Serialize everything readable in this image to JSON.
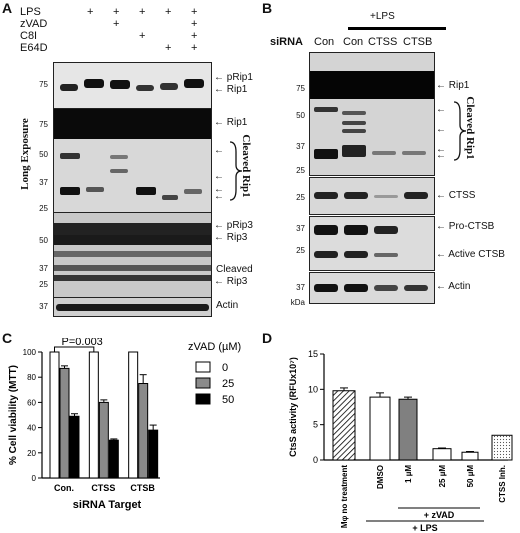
{
  "panelA": {
    "letter": "A",
    "treatments": [
      "LPS",
      "zVAD",
      "C8I",
      "E64D"
    ],
    "plus": "+",
    "signs": [
      [
        "",
        "+",
        "+",
        "+",
        "+",
        "+"
      ],
      [
        "",
        "",
        "+",
        "",
        "",
        "+"
      ],
      [
        "",
        "",
        "",
        "+",
        "",
        "+"
      ],
      [
        "",
        "",
        "",
        "",
        "+",
        "+"
      ]
    ],
    "long_exposure": "Long Exposure",
    "mw1": [
      "75"
    ],
    "mw2": [
      "75",
      "50",
      "37",
      "25"
    ],
    "mw3": [
      "50",
      "37",
      "25"
    ],
    "mw4": [
      "37"
    ],
    "labels": {
      "pRip1": "pRip1",
      "Rip1": "Rip1",
      "Rip1b": "Rip1",
      "cleaved_rip1": "Cleaved Rip1",
      "pRip3": "pRip3",
      "Rip3": "Rip3",
      "cleaved": "Cleaved",
      "Rip3b": "Rip3",
      "actin": "Actin"
    }
  },
  "panelB": {
    "letter": "B",
    "plus_lps": "+LPS",
    "sirna": "siRNA",
    "lanes": [
      "Con",
      "Con",
      "CTSS",
      "CTSB"
    ],
    "mw1": [
      "75",
      "50",
      "37",
      "25"
    ],
    "mw2": [
      "25"
    ],
    "mw3": [
      "37",
      "25"
    ],
    "mw4": [
      "37"
    ],
    "kda": "kDa",
    "labels": {
      "rip1": "Rip1",
      "cleaved_rip1": "Cleaved Rip1",
      "ctss": "CTSS",
      "pro_ctsb": "Pro-CTSB",
      "active_ctsb": "Active CTSB",
      "actin": "Actin"
    }
  },
  "panelC": {
    "letter": "C",
    "ylabel": "% Cell viability (MTT)",
    "xlabel": "siRNA Target",
    "pvalue": "P=0.003",
    "legend_title": "zVAD (µM)"
  },
  "panelD": {
    "letter": "D",
    "ylabel": "CtsS activity (RFUx10⁷)",
    "group_zvad": "+ zVAD",
    "group_lps": "+ LPS"
  },
  "chart_data": [
    {
      "type": "bar",
      "title": "",
      "xlabel": "siRNA Target",
      "ylabel": "% Cell viability (MTT)",
      "categories": [
        "Con.",
        "CTSS",
        "CTSB"
      ],
      "legend_title": "zVAD (µM)",
      "series": [
        {
          "name": "0",
          "values": [
            100,
            100,
            100
          ],
          "errors": [
            0,
            0,
            0
          ],
          "color": "#ffffff"
        },
        {
          "name": "25",
          "values": [
            87,
            60,
            75
          ],
          "errors": [
            2,
            2,
            7
          ],
          "color": "#8a8a8a"
        },
        {
          "name": "50",
          "values": [
            49,
            30,
            38
          ],
          "errors": [
            2,
            1,
            4
          ],
          "color": "#000000"
        }
      ],
      "ylim": [
        0,
        100
      ],
      "yticks": [
        0,
        20,
        40,
        60,
        80,
        100
      ]
    },
    {
      "type": "bar",
      "title": "",
      "xlabel": "",
      "ylabel": "CtsS activity (RFUx10⁷)",
      "categories": [
        "Mφ no treatment",
        "DMSO",
        "1 µM",
        "25 µM",
        "50 µM",
        "CTSS Inh."
      ],
      "values": [
        9.8,
        8.9,
        8.6,
        1.6,
        1.1,
        3.5
      ],
      "errors": [
        0.4,
        0.6,
        0.3,
        0.1,
        0.1,
        0
      ],
      "fills": [
        "hatch",
        "white",
        "gray",
        "white",
        "white",
        "dots"
      ],
      "ylim": [
        0,
        15
      ],
      "yticks": [
        0,
        5,
        10,
        15
      ]
    }
  ]
}
